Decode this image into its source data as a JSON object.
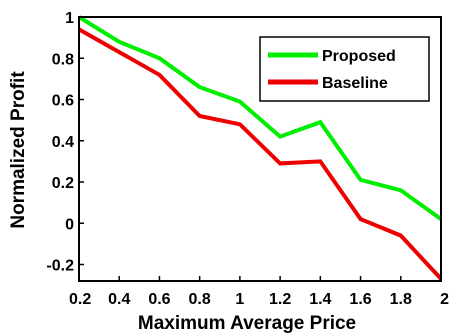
{
  "chart_data": {
    "type": "line",
    "xlabel": "Maximum Average Price",
    "ylabel": "Normalized Profit",
    "xlim": [
      0.2,
      2
    ],
    "ylim": [
      -0.28,
      1
    ],
    "x_ticks": [
      "0.2",
      "0.4",
      "0.6",
      "0.8",
      "1",
      "1.2",
      "1.4",
      "1.6",
      "1.8",
      "2"
    ],
    "y_ticks": [
      "-0.2",
      "0",
      "0.2",
      "0.4",
      "0.6",
      "0.8",
      "1"
    ],
    "x": [
      0.2,
      0.4,
      0.6,
      0.8,
      1.0,
      1.2,
      1.4,
      1.6,
      1.8,
      2.0
    ],
    "series": [
      {
        "name": "Proposed",
        "color": "#00ee00",
        "values": [
          1.0,
          0.88,
          0.8,
          0.66,
          0.59,
          0.42,
          0.49,
          0.21,
          0.16,
          0.02
        ]
      },
      {
        "name": "Baseline",
        "color": "#ee0000",
        "values": [
          0.94,
          0.83,
          0.72,
          0.52,
          0.48,
          0.29,
          0.3,
          0.02,
          -0.06,
          -0.27
        ]
      }
    ],
    "legend_position": "top-right",
    "grid": false
  }
}
